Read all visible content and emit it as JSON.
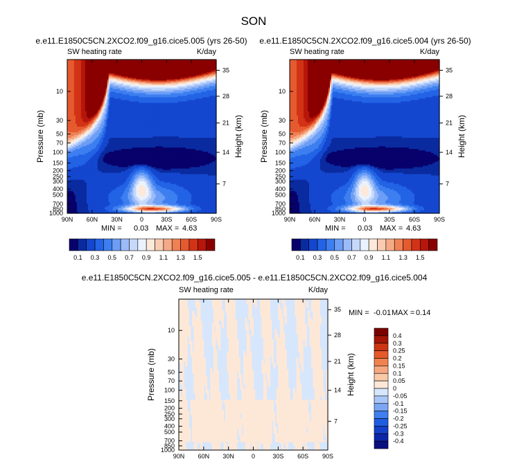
{
  "main_title": "SON",
  "colors": {
    "abs_scale": [
      "#08006b",
      "#0a2ba0",
      "#1447cf",
      "#2363e5",
      "#3d7ff0",
      "#6c9ef5",
      "#9cbcf8",
      "#c7d9fb",
      "#eaf2fe",
      "#fde9da",
      "#f9cbb0",
      "#f5a985",
      "#ef8155",
      "#e65a30",
      "#d23316",
      "#b7160a",
      "#8a0000"
    ],
    "diff_scale": [
      "#0a0f80",
      "#0b26a8",
      "#1340c8",
      "#1f5ee0",
      "#3f7eee",
      "#7aa6f4",
      "#a9c6f8",
      "#d6e6fc",
      "#fde8d8",
      "#f9c9a8",
      "#f6a77f",
      "#f0824f",
      "#e55a2a",
      "#cc3512",
      "#a31506",
      "#7a0000"
    ],
    "diff_field_light_blue": "#d6e6fc",
    "diff_field_light_orange": "#fde8d8"
  },
  "chart_data": [
    {
      "type": "heatmap",
      "id": "panel_left",
      "title": "e.e11.E1850C5CN.2XCO2.f09_g16.cice5.005 (yrs 26-50)",
      "left_label": "SW heating rate",
      "right_label": "K/day",
      "xlabel": "",
      "ylabel": "Pressure (mb)",
      "ylabel_right": "Height (km)",
      "x_ticks": [
        "90N",
        "60N",
        "30N",
        "0",
        "30S",
        "60S",
        "90S"
      ],
      "y_ticks": [
        "10",
        "30",
        "50",
        "70",
        "100",
        "150",
        "200",
        "250",
        "300",
        "400",
        "500",
        "700",
        "850",
        "1000"
      ],
      "y_ticks_right": [
        "35",
        "28",
        "21",
        "14",
        "7"
      ],
      "ylim": [
        1000,
        3
      ],
      "stats": {
        "min_label": "MIN =",
        "min": "0.03",
        "max_label": "MAX =",
        "max": "4.63"
      },
      "legend_labels": [
        "0.1",
        "0.3",
        "0.5",
        "0.7",
        "0.9",
        "1.1",
        "1.3",
        "1.5"
      ],
      "levels": [
        0.05,
        0.1,
        0.2,
        0.3,
        0.4,
        0.5,
        0.6,
        0.7,
        0.8,
        0.9,
        1.0,
        1.1,
        1.2,
        1.3,
        1.4,
        1.5
      ],
      "palette": "abs_scale"
    },
    {
      "type": "heatmap",
      "id": "panel_right",
      "title": "e.e11.E1850C5CN.2XCO2.f09_g16.cice5.004 (yrs 26-50)",
      "left_label": "SW heating rate",
      "right_label": "K/day",
      "xlabel": "",
      "ylabel": "Pressure (mb)",
      "ylabel_right": "Height (km)",
      "x_ticks": [
        "90N",
        "60N",
        "30N",
        "0",
        "30S",
        "60S",
        "90S"
      ],
      "y_ticks": [
        "10",
        "30",
        "50",
        "70",
        "100",
        "150",
        "200",
        "250",
        "300",
        "400",
        "500",
        "700",
        "850",
        "1000"
      ],
      "y_ticks_right": [
        "35",
        "28",
        "21",
        "14",
        "7"
      ],
      "ylim": [
        1000,
        3
      ],
      "stats": {
        "min_label": "MIN =",
        "min": "0.03",
        "max_label": "MAX =",
        "max": "4.63"
      },
      "legend_labels": [
        "0.1",
        "0.3",
        "0.5",
        "0.7",
        "0.9",
        "1.1",
        "1.3",
        "1.5"
      ],
      "levels": [
        0.05,
        0.1,
        0.2,
        0.3,
        0.4,
        0.5,
        0.6,
        0.7,
        0.8,
        0.9,
        1.0,
        1.1,
        1.2,
        1.3,
        1.4,
        1.5
      ],
      "palette": "abs_scale"
    },
    {
      "type": "heatmap",
      "id": "panel_diff",
      "title": "e.e11.E1850C5CN.2XCO2.f09_g16.cice5.005 - e.e11.E1850C5CN.2XCO2.f09_g16.cice5.004",
      "left_label": "SW heating rate",
      "right_label": "K/day",
      "xlabel": "",
      "ylabel": "Pressure (mb)",
      "ylabel_right": "Height (km)",
      "x_ticks": [
        "90N",
        "60N",
        "30N",
        "0",
        "30S",
        "60S",
        "90S"
      ],
      "y_ticks": [
        "10",
        "30",
        "50",
        "70",
        "100",
        "150",
        "200",
        "250",
        "300",
        "400",
        "500",
        "700",
        "850",
        "1000"
      ],
      "y_ticks_right": [
        "35",
        "28",
        "21",
        "14",
        "7"
      ],
      "ylim": [
        1000,
        3
      ],
      "stats": {
        "min_label": "MIN =",
        "min": "-0.01",
        "max_label": "MAX =",
        "max": "0.14"
      },
      "legend_labels": [
        "0.4",
        "0.3",
        "0.25",
        "0.2",
        "0.15",
        "0.1",
        "0.05",
        "0",
        "-0.05",
        "-0.1",
        "-0.15",
        "-0.2",
        "-0.25",
        "-0.3",
        "-0.4"
      ],
      "palette": "diff_scale"
    }
  ]
}
